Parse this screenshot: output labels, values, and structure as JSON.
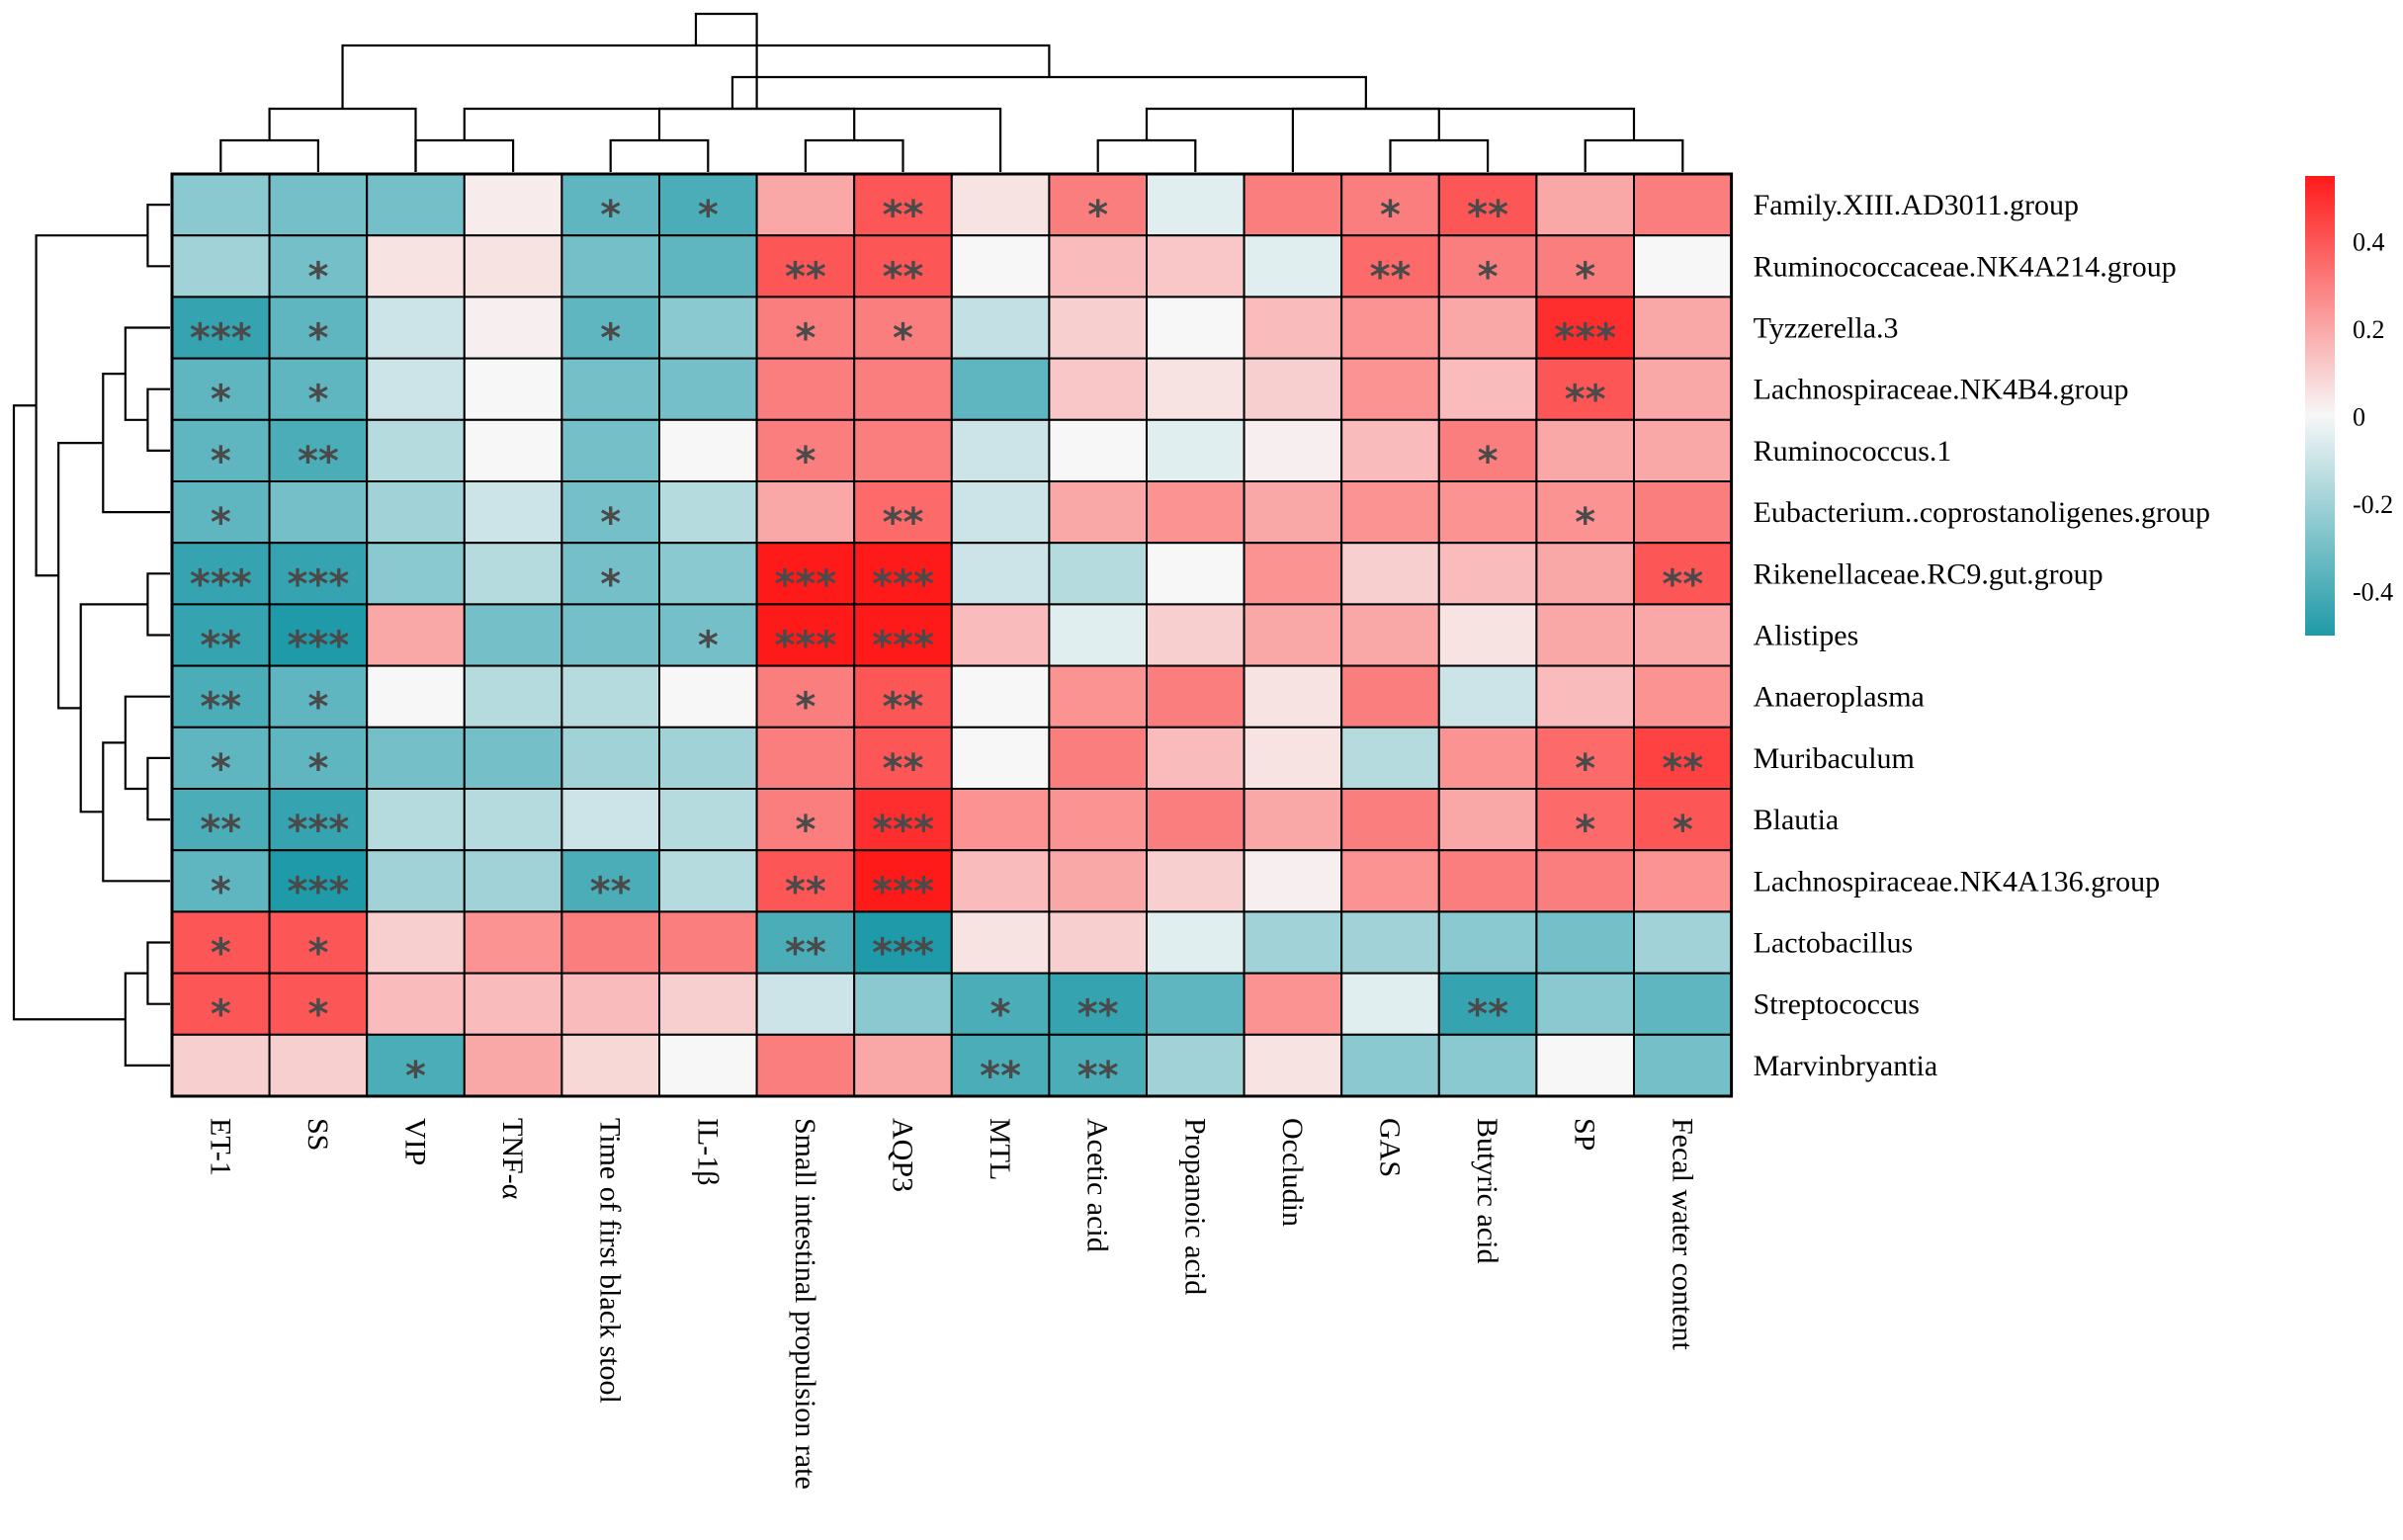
{
  "chart_data": {
    "type": "heatmap",
    "title": "",
    "rows": [
      "Family.XIII.AD3011.group",
      "Ruminococcaceae.NK4A214.group",
      "Tyzzerella.3",
      "Lachnospiraceae.NK4B4.group",
      "Ruminococcus.1",
      "Eubacterium..coprostanoligenes.group",
      "Rikenellaceae.RC9.gut.group",
      "Alistipes",
      "Anaeroplasma",
      "Muribaculum",
      "Blautia",
      "Lachnospiraceae.NK4A136.group",
      "Lactobacillus",
      "Streptococcus",
      "Marvinbryantia"
    ],
    "columns": [
      "ET-1",
      "SS",
      "VIP",
      "TNF-α",
      "Time of first black stool",
      "IL-1β",
      "Small intestinal propulsion rate",
      "AQP3",
      "MTL",
      "Acetic acid",
      "Propanoic acid",
      "Occludin",
      "GAS",
      "Butyric acid",
      "SP",
      "Fecal water content"
    ],
    "values": [
      [
        -0.25,
        -0.3,
        -0.3,
        0.03,
        -0.35,
        -0.4,
        0.2,
        0.4,
        0.05,
        0.3,
        -0.05,
        0.3,
        0.3,
        0.4,
        0.2,
        0.3
      ],
      [
        -0.2,
        -0.3,
        0.05,
        0.05,
        -0.3,
        -0.35,
        0.4,
        0.4,
        0.0,
        0.15,
        0.12,
        -0.05,
        0.35,
        0.3,
        0.3,
        0.0
      ],
      [
        -0.45,
        -0.35,
        -0.1,
        0.02,
        -0.35,
        -0.25,
        0.3,
        0.3,
        -0.12,
        0.1,
        0.0,
        0.15,
        0.25,
        0.2,
        0.5,
        0.2
      ],
      [
        -0.35,
        -0.35,
        -0.1,
        0.0,
        -0.3,
        -0.3,
        0.3,
        0.3,
        -0.35,
        0.12,
        0.05,
        0.1,
        0.25,
        0.15,
        0.4,
        0.2
      ],
      [
        -0.35,
        -0.4,
        -0.15,
        0.0,
        -0.3,
        0.0,
        0.3,
        0.3,
        -0.1,
        0.0,
        -0.05,
        0.02,
        0.15,
        0.3,
        0.2,
        0.2
      ],
      [
        -0.35,
        -0.3,
        -0.2,
        -0.1,
        -0.3,
        -0.15,
        0.2,
        0.35,
        -0.1,
        0.2,
        0.25,
        0.2,
        0.25,
        0.25,
        0.25,
        0.3
      ],
      [
        -0.45,
        -0.45,
        -0.25,
        -0.15,
        -0.3,
        -0.25,
        0.55,
        0.55,
        -0.1,
        -0.15,
        0.0,
        0.25,
        0.1,
        0.15,
        0.2,
        0.4
      ],
      [
        -0.45,
        -0.5,
        0.2,
        -0.3,
        -0.3,
        -0.3,
        0.55,
        0.55,
        0.15,
        -0.05,
        0.1,
        0.2,
        0.2,
        0.05,
        0.2,
        0.2
      ],
      [
        -0.4,
        -0.35,
        0.0,
        -0.15,
        -0.15,
        0.0,
        0.3,
        0.4,
        0.0,
        0.25,
        0.3,
        0.05,
        0.3,
        -0.1,
        0.15,
        0.25
      ],
      [
        -0.35,
        -0.35,
        -0.3,
        -0.3,
        -0.2,
        -0.2,
        0.3,
        0.4,
        0.0,
        0.3,
        0.15,
        0.05,
        -0.15,
        0.25,
        0.35,
        0.45
      ],
      [
        -0.4,
        -0.45,
        -0.15,
        -0.15,
        -0.1,
        -0.15,
        0.3,
        0.5,
        0.25,
        0.25,
        0.3,
        0.2,
        0.3,
        0.2,
        0.35,
        0.4
      ],
      [
        -0.35,
        -0.5,
        -0.2,
        -0.2,
        -0.4,
        -0.15,
        0.4,
        0.55,
        0.15,
        0.2,
        0.1,
        0.02,
        0.25,
        0.3,
        0.3,
        0.25
      ],
      [
        0.4,
        0.4,
        0.1,
        0.25,
        0.3,
        0.3,
        -0.4,
        -0.5,
        0.05,
        0.1,
        -0.05,
        -0.2,
        -0.2,
        -0.25,
        -0.3,
        -0.2
      ],
      [
        0.4,
        0.4,
        0.15,
        0.15,
        0.15,
        0.1,
        -0.1,
        -0.25,
        -0.4,
        -0.45,
        -0.35,
        0.25,
        -0.05,
        -0.45,
        -0.25,
        -0.35
      ],
      [
        0.1,
        0.1,
        -0.4,
        0.2,
        0.08,
        0.0,
        0.3,
        0.2,
        -0.4,
        -0.4,
        -0.2,
        0.05,
        -0.25,
        -0.25,
        0.0,
        -0.3
      ]
    ],
    "significance": [
      [
        "",
        "",
        "",
        "",
        "*",
        "*",
        "",
        "**",
        "",
        "*",
        "",
        "",
        "*",
        "**",
        "",
        ""
      ],
      [
        "",
        "*",
        "",
        "",
        "",
        "",
        "**",
        "**",
        "",
        "",
        "",
        "",
        "**",
        "*",
        "*",
        ""
      ],
      [
        "***",
        "*",
        "",
        "",
        "*",
        "",
        "*",
        "*",
        "",
        "",
        "",
        "",
        "",
        "",
        "***",
        ""
      ],
      [
        "*",
        "*",
        "",
        "",
        "",
        "",
        "",
        "",
        "",
        "",
        "",
        "",
        "",
        "",
        "**",
        ""
      ],
      [
        "*",
        "**",
        "",
        "",
        "",
        "",
        "*",
        "",
        "",
        "",
        "",
        "",
        "",
        "*",
        "",
        ""
      ],
      [
        "*",
        "",
        "",
        "",
        "*",
        "",
        "",
        "**",
        "",
        "",
        "",
        "",
        "",
        "",
        "*",
        ""
      ],
      [
        "***",
        "***",
        "",
        "",
        "*",
        "",
        "***",
        "***",
        "",
        "",
        "",
        "",
        "",
        "",
        "",
        "**"
      ],
      [
        "**",
        "***",
        "",
        "",
        "",
        "*",
        "***",
        "***",
        "",
        "",
        "",
        "",
        "",
        "",
        "",
        ""
      ],
      [
        "**",
        "*",
        "",
        "",
        "",
        "",
        "*",
        "**",
        "",
        "",
        "",
        "",
        "",
        "",
        "",
        ""
      ],
      [
        "*",
        "*",
        "",
        "",
        "",
        "",
        "",
        "**",
        "",
        "",
        "",
        "",
        "",
        "",
        "*",
        "**"
      ],
      [
        "**",
        "***",
        "",
        "",
        "",
        "",
        "*",
        "***",
        "",
        "",
        "",
        "",
        "",
        "",
        "*",
        "*"
      ],
      [
        "*",
        "***",
        "",
        "",
        "**",
        "",
        "**",
        "***",
        "",
        "",
        "",
        "",
        "",
        "",
        "",
        ""
      ],
      [
        "*",
        "*",
        "",
        "",
        "",
        "",
        "**",
        "***",
        "",
        "",
        "",
        "",
        "",
        "",
        "",
        ""
      ],
      [
        "*",
        "*",
        "",
        "",
        "",
        "",
        "",
        "",
        "*",
        "**",
        "",
        "",
        "",
        "**",
        "",
        ""
      ],
      [
        "",
        "",
        "*",
        "",
        "",
        "",
        "",
        "",
        "**",
        "**",
        "",
        "",
        "",
        "",
        "",
        ""
      ]
    ],
    "legend": {
      "ticks": [
        0.4,
        0.2,
        0,
        -0.2,
        -0.4
      ],
      "tick_labels": [
        "0.4",
        "0.2",
        "0",
        "-0.2",
        "-0.4"
      ],
      "range": [
        -0.5,
        0.55
      ],
      "colors": {
        "low": "#1f9aa8",
        "mid": "#f7f7f7",
        "high": "#ff1a1a"
      },
      "placement": "top-right"
    },
    "col_dendrogram": [
      [
        0,
        1
      ],
      [
        2,
        3
      ],
      [
        4,
        5
      ],
      [
        9,
        10
      ],
      [
        12,
        13
      ],
      [
        14,
        15
      ],
      [
        6,
        7
      ],
      [
        8,
        17
      ],
      [
        11,
        20
      ],
      [
        19,
        21
      ],
      [
        18,
        22
      ],
      [
        2,
        16
      ],
      [
        23,
        24
      ],
      [
        27,
        28
      ],
      [
        26,
        29
      ]
    ],
    "row_dendrogram": [
      [
        0,
        1
      ],
      [
        3,
        4
      ],
      [
        2,
        16
      ],
      [
        5,
        17
      ],
      [
        6,
        7
      ],
      [
        9,
        10
      ],
      [
        8,
        20
      ],
      [
        11,
        21
      ],
      [
        19,
        22
      ],
      [
        18,
        23
      ],
      [
        15,
        24
      ],
      [
        12,
        13
      ],
      [
        14,
        26
      ],
      [
        25,
        27
      ]
    ]
  }
}
